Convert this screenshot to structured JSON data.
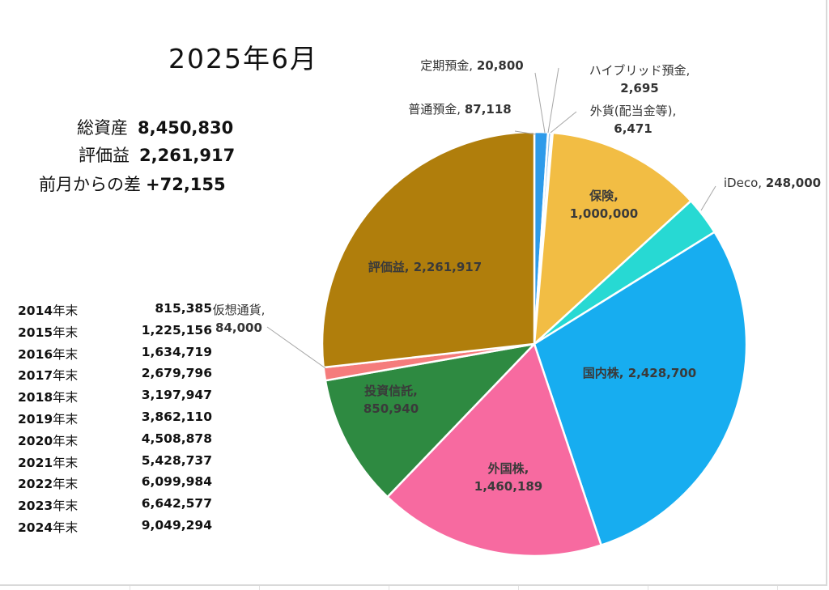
{
  "title": "2025年6月",
  "summary": [
    {
      "label": "総資産",
      "value": "8,450,830"
    },
    {
      "label": "評価益",
      "value": "2,261,917"
    },
    {
      "label": "前月からの差",
      "value": "+72,155"
    }
  ],
  "history": [
    {
      "year": "2014",
      "suffix": "年末",
      "amount": "815,385"
    },
    {
      "year": "2015",
      "suffix": "年末",
      "amount": "1,225,156"
    },
    {
      "year": "2016",
      "suffix": "年末",
      "amount": "1,634,719"
    },
    {
      "year": "2017",
      "suffix": "年末",
      "amount": "2,679,796"
    },
    {
      "year": "2018",
      "suffix": "年末",
      "amount": "3,197,947"
    },
    {
      "year": "2019",
      "suffix": "年末",
      "amount": "3,862,110"
    },
    {
      "year": "2020",
      "suffix": "年末",
      "amount": "4,508,878"
    },
    {
      "year": "2021",
      "suffix": "年末",
      "amount": "5,428,737"
    },
    {
      "year": "2022",
      "suffix": "年末",
      "amount": "6,099,984"
    },
    {
      "year": "2023",
      "suffix": "年末",
      "amount": "6,642,577"
    },
    {
      "year": "2024",
      "suffix": "年末",
      "amount": "9,049,294"
    }
  ],
  "chart_data": {
    "type": "pie",
    "title": "2025年6月",
    "slices": [
      {
        "name": "普通預金",
        "value": 87118,
        "display": "87,118",
        "color": "#2e9bea"
      },
      {
        "name": "定期預金",
        "value": 20800,
        "display": "20,800",
        "color": "#9ec7ea"
      },
      {
        "name": "ハイブリッド預金",
        "value": 2695,
        "display": "2,695",
        "color": "#cfcfcf"
      },
      {
        "name": "外貨(配当金等)",
        "value": 6471,
        "display": "6,471",
        "color": "#dcdcdc"
      },
      {
        "name": "保険",
        "value": 1000000,
        "display": "1,000,000",
        "color": "#f2bd44"
      },
      {
        "name": "iDeco",
        "value": 248000,
        "display": "248,000",
        "color": "#27d9d3"
      },
      {
        "name": "国内株",
        "value": 2428700,
        "display": "2,428,700",
        "color": "#17adf0"
      },
      {
        "name": "外国株",
        "value": 1460189,
        "display": "1,460,189",
        "color": "#f76aa0"
      },
      {
        "name": "投資信託",
        "value": 850940,
        "display": "850,940",
        "color": "#2e8a41"
      },
      {
        "name": "仮想通貨",
        "value": 84000,
        "display": "84,000",
        "color": "#f57c7c"
      },
      {
        "name": "評価益",
        "value": 2261917,
        "display": "2,261,917",
        "color": "#b07e0c"
      }
    ]
  }
}
